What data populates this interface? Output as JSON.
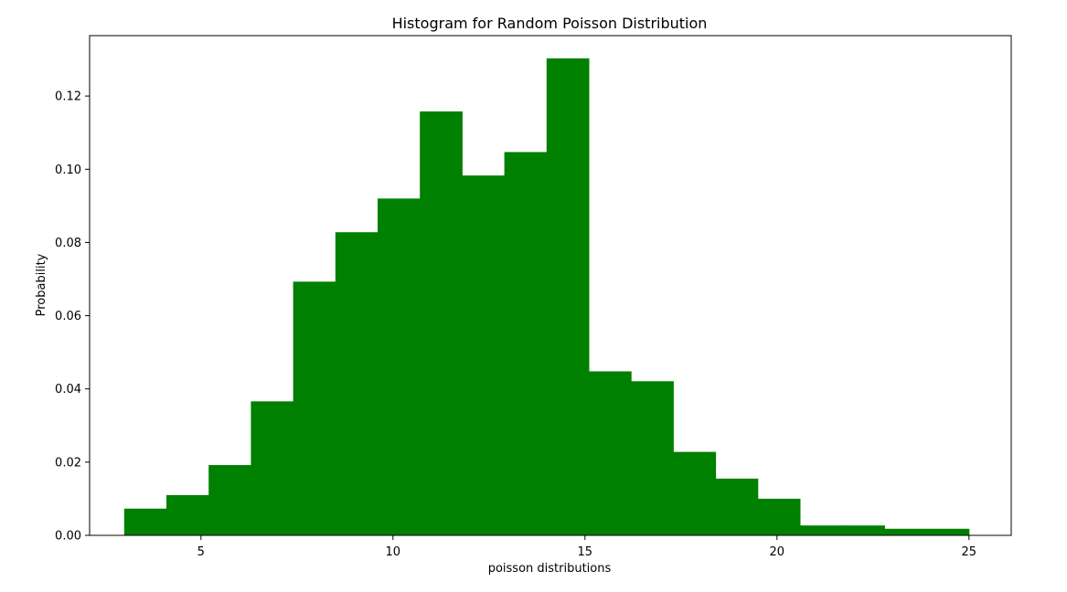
{
  "chart_data": {
    "type": "bar",
    "title": "Histogram for Random Poisson Distribution",
    "xlabel": "poisson distributions",
    "ylabel": "Probability",
    "xlim": [
      2.1,
      26.1
    ],
    "ylim": [
      0,
      0.1365
    ],
    "xticks": [
      5,
      10,
      15,
      20,
      25
    ],
    "yticks": [
      0.0,
      0.02,
      0.04,
      0.06,
      0.08,
      0.1,
      0.12
    ],
    "ytick_labels": [
      "0.00",
      "0.02",
      "0.04",
      "0.06",
      "0.08",
      "0.10",
      "0.12"
    ],
    "bar_color": "#008000",
    "grid": false,
    "legend": "none",
    "bins": [
      {
        "x0": 3.0,
        "x1": 4.1,
        "value": 0.0073
      },
      {
        "x0": 4.1,
        "x1": 5.2,
        "value": 0.011
      },
      {
        "x0": 5.2,
        "x1": 6.3,
        "value": 0.0192
      },
      {
        "x0": 6.3,
        "x1": 7.4,
        "value": 0.0366
      },
      {
        "x0": 7.4,
        "x1": 8.5,
        "value": 0.0693
      },
      {
        "x0": 8.5,
        "x1": 9.6,
        "value": 0.0828
      },
      {
        "x0": 9.6,
        "x1": 10.7,
        "value": 0.092
      },
      {
        "x0": 10.7,
        "x1": 11.8,
        "value": 0.1158
      },
      {
        "x0": 11.8,
        "x1": 12.9,
        "value": 0.0983
      },
      {
        "x0": 12.9,
        "x1": 14.0,
        "value": 0.1047
      },
      {
        "x0": 14.0,
        "x1": 15.1,
        "value": 0.1303
      },
      {
        "x0": 15.1,
        "x1": 16.2,
        "value": 0.0448
      },
      {
        "x0": 16.2,
        "x1": 17.3,
        "value": 0.0421
      },
      {
        "x0": 17.3,
        "x1": 18.4,
        "value": 0.0228
      },
      {
        "x0": 18.4,
        "x1": 19.5,
        "value": 0.0155
      },
      {
        "x0": 19.5,
        "x1": 20.6,
        "value": 0.01
      },
      {
        "x0": 20.6,
        "x1": 21.7,
        "value": 0.0027
      },
      {
        "x0": 21.7,
        "x1": 22.8,
        "value": 0.0027
      },
      {
        "x0": 22.8,
        "x1": 23.9,
        "value": 0.0018
      },
      {
        "x0": 23.9,
        "x1": 25.0,
        "value": 0.0018
      }
    ]
  }
}
